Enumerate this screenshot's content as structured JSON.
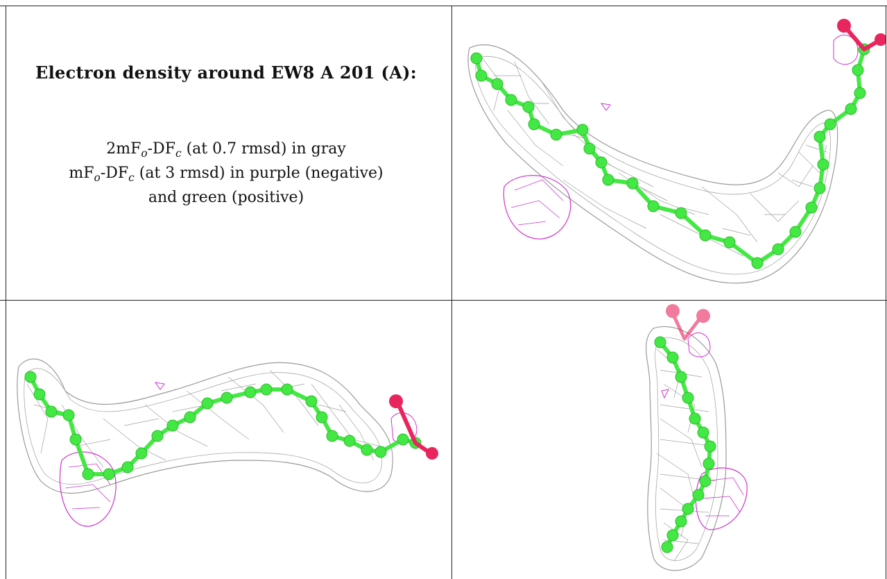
{
  "caption": {
    "title": "Electron density around EW8 A 201 (A):",
    "line1": "2mFo-DFc (at 0.7 rmsd) in gray",
    "line2": "mFo-DFc (at 3 rmsd) in purple (negative)",
    "line3": "and green (positive)"
  },
  "colors": {
    "mesh_2fofc": "#9a9a9a",
    "mesh_negative": "#cc33cc",
    "carbon_atoms": "#44e844",
    "oxygen_atoms": "#e8255c",
    "frame": "#222222"
  },
  "panels": [
    {
      "name": "view-top-right"
    },
    {
      "name": "view-bottom-left"
    },
    {
      "name": "view-bottom-right"
    }
  ]
}
